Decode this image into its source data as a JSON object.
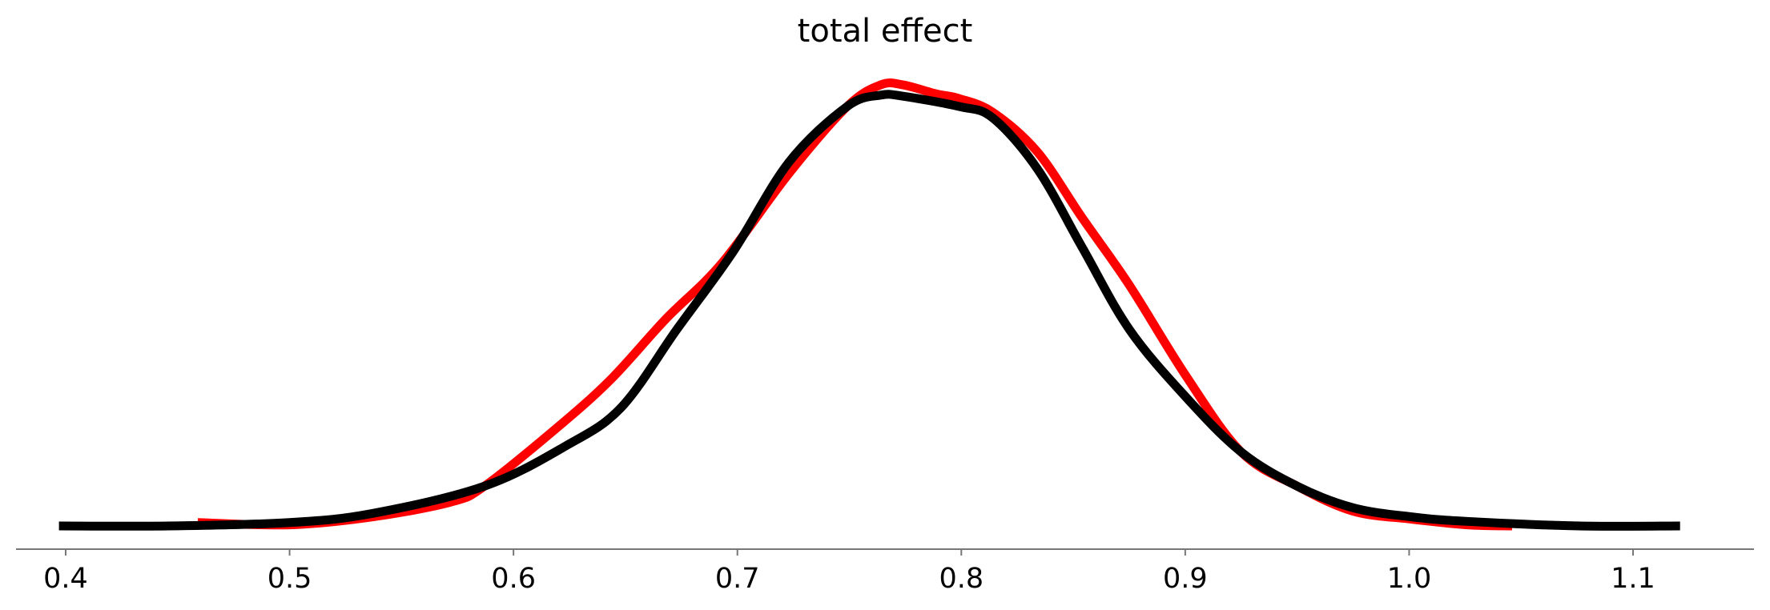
{
  "chart_data": {
    "type": "line",
    "title": "total effect",
    "xlabel": "",
    "ylabel": "",
    "xlim": [
      0.38,
      1.155
    ],
    "ylim": [
      0,
      4.1
    ],
    "grid": false,
    "y_axis_visible": false,
    "x_ticks": [
      0.4,
      0.5,
      0.6,
      0.7,
      0.8,
      0.9,
      1.0,
      1.1
    ],
    "x_tick_labels": [
      "0.4",
      "0.5",
      "0.6",
      "0.7",
      "0.8",
      "0.9",
      "1.0",
      "1.1"
    ],
    "series": [
      {
        "color": "#ff0000",
        "x": [
          0.459,
          0.5,
          0.537,
          0.572,
          0.587,
          0.618,
          0.643,
          0.668,
          0.693,
          0.723,
          0.749,
          0.764,
          0.774,
          0.789,
          0.799,
          0.814,
          0.834,
          0.854,
          0.875,
          0.9,
          0.925,
          0.95,
          0.975,
          1.001,
          1.026,
          1.046
        ],
        "y": [
          0.03,
          0.01,
          0.08,
          0.21,
          0.35,
          0.84,
          1.28,
          1.82,
          2.31,
          3.1,
          3.69,
          3.88,
          3.88,
          3.8,
          3.76,
          3.64,
          3.29,
          2.71,
          2.12,
          1.33,
          0.65,
          0.35,
          0.13,
          0.06,
          0.01,
          0.0
        ]
      },
      {
        "color": "#000000",
        "x": [
          0.397,
          0.446,
          0.5,
          0.537,
          0.587,
          0.623,
          0.648,
          0.673,
          0.698,
          0.723,
          0.749,
          0.764,
          0.774,
          0.799,
          0.814,
          0.834,
          0.854,
          0.875,
          0.9,
          0.925,
          0.95,
          0.975,
          1.001,
          1.026,
          1.076,
          1.121
        ],
        "y": [
          0.0,
          0.0,
          0.03,
          0.11,
          0.35,
          0.7,
          1.04,
          1.73,
          2.41,
          3.2,
          3.69,
          3.79,
          3.78,
          3.69,
          3.59,
          3.14,
          2.45,
          1.73,
          1.14,
          0.65,
          0.35,
          0.16,
          0.08,
          0.04,
          0.0,
          0.0
        ]
      }
    ]
  }
}
